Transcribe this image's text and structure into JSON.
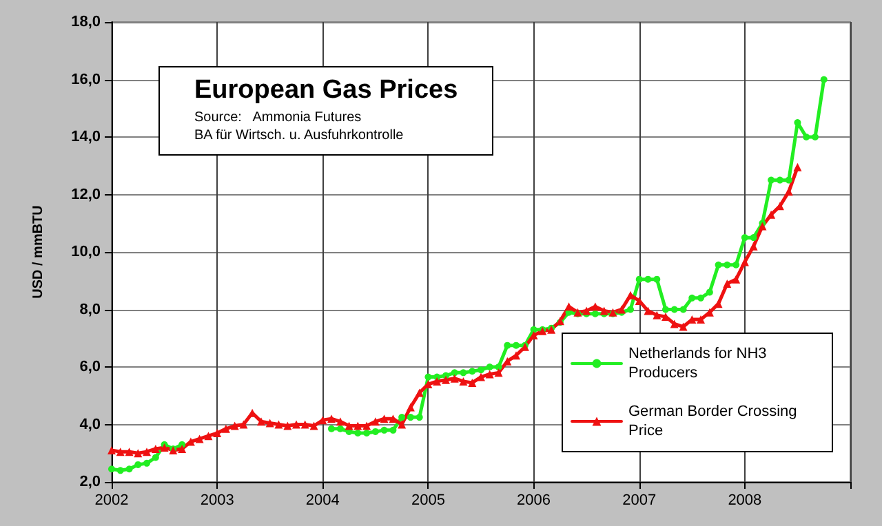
{
  "chart_data": {
    "type": "line",
    "title": "European Gas Prices",
    "annotations": [
      "Source:   Ammonia Futures",
      "BA für Wirtsch. u. Ausfuhrkontrolle"
    ],
    "ylabel": "USD / mmBTU",
    "xlim": [
      2002,
      2009
    ],
    "xticks": [
      2002,
      2003,
      2004,
      2005,
      2006,
      2007,
      2008,
      {
        "value": 2009,
        "label": null
      }
    ],
    "ylim": [
      2,
      18
    ],
    "yticks": [
      {
        "value": 2,
        "label": "2,0"
      },
      {
        "value": 4,
        "label": "4,0"
      },
      {
        "value": 6,
        "label": "6,0"
      },
      {
        "value": 8,
        "label": "8,0"
      },
      {
        "value": 10,
        "label": "10,0"
      },
      {
        "value": 12,
        "label": "12,0"
      },
      {
        "value": 14,
        "label": "14,0"
      },
      {
        "value": 16,
        "label": "16,0"
      },
      {
        "value": 18,
        "label": "18,0"
      }
    ],
    "grid": true,
    "legend": "bottom right",
    "line_style": "solid",
    "x": [
      2002,
      2002.083,
      2002.167,
      2002.25,
      2002.333,
      2002.417,
      2002.5,
      2002.583,
      2002.667,
      2002.75,
      2002.833,
      2002.917,
      2003,
      2003.083,
      2003.167,
      2003.25,
      2003.333,
      2003.417,
      2003.5,
      2003.583,
      2003.667,
      2003.75,
      2003.833,
      2003.917,
      2004,
      2004.083,
      2004.167,
      2004.25,
      2004.333,
      2004.417,
      2004.5,
      2004.583,
      2004.667,
      2004.75,
      2004.833,
      2004.917,
      2005,
      2005.083,
      2005.167,
      2005.25,
      2005.333,
      2005.417,
      2005.5,
      2005.583,
      2005.667,
      2005.75,
      2005.833,
      2005.917,
      2006,
      2006.083,
      2006.167,
      2006.25,
      2006.333,
      2006.417,
      2006.5,
      2006.583,
      2006.667,
      2006.75,
      2006.833,
      2006.917,
      2007,
      2007.083,
      2007.167,
      2007.25,
      2007.333,
      2007.417,
      2007.5,
      2007.583,
      2007.667,
      2007.75,
      2007.833,
      2007.917,
      2008,
      2008.083,
      2008.167,
      2008.25,
      2008.333,
      2008.417,
      2008.5,
      2008.583,
      2008.667,
      2008.75
    ],
    "series": [
      {
        "name": "Netherlands for NH3 Producers",
        "color": "#22ee22",
        "marker": "circle",
        "values": [
          2.45,
          2.4,
          2.45,
          2.6,
          2.65,
          2.85,
          3.3,
          3.15,
          3.3,
          null,
          null,
          null,
          null,
          null,
          null,
          null,
          null,
          null,
          null,
          null,
          null,
          null,
          null,
          null,
          null,
          3.85,
          3.85,
          3.75,
          3.7,
          3.7,
          3.75,
          3.8,
          3.8,
          4.25,
          4.25,
          4.25,
          5.65,
          5.65,
          5.7,
          5.8,
          5.8,
          5.85,
          5.9,
          6.0,
          6.0,
          6.75,
          6.75,
          6.75,
          7.3,
          7.3,
          7.35,
          7.55,
          7.9,
          7.85,
          7.85,
          7.85,
          7.85,
          7.85,
          7.9,
          8.0,
          9.05,
          9.05,
          9.05,
          8.0,
          8.0,
          8.0,
          8.4,
          8.4,
          8.6,
          9.55,
          9.55,
          9.55,
          10.5,
          10.5,
          11.0,
          12.5,
          12.5,
          12.5,
          14.5,
          14.0,
          14.0,
          16.0
        ]
      },
      {
        "name": "German Border Crossing Price",
        "color": "#ee1111",
        "marker": "triangle",
        "values": [
          3.1,
          3.05,
          3.05,
          3.0,
          3.05,
          3.15,
          3.2,
          3.1,
          3.15,
          3.4,
          3.5,
          3.6,
          3.7,
          3.85,
          3.95,
          4.0,
          4.4,
          4.1,
          4.05,
          4.0,
          3.95,
          4.0,
          4.0,
          3.95,
          4.15,
          4.2,
          4.1,
          3.95,
          3.95,
          3.95,
          4.1,
          4.2,
          4.2,
          4.0,
          4.6,
          5.1,
          5.4,
          5.5,
          5.55,
          5.6,
          5.5,
          5.45,
          5.65,
          5.75,
          5.8,
          6.2,
          6.4,
          6.7,
          7.1,
          7.25,
          7.3,
          7.6,
          8.1,
          7.9,
          7.95,
          8.1,
          7.95,
          7.9,
          8.0,
          8.5,
          8.3,
          7.95,
          7.8,
          7.75,
          7.5,
          7.4,
          7.65,
          7.65,
          7.9,
          8.2,
          8.9,
          9.05,
          9.65,
          10.2,
          10.9,
          11.3,
          11.6,
          12.1,
          12.95,
          null,
          null,
          null
        ]
      }
    ]
  }
}
